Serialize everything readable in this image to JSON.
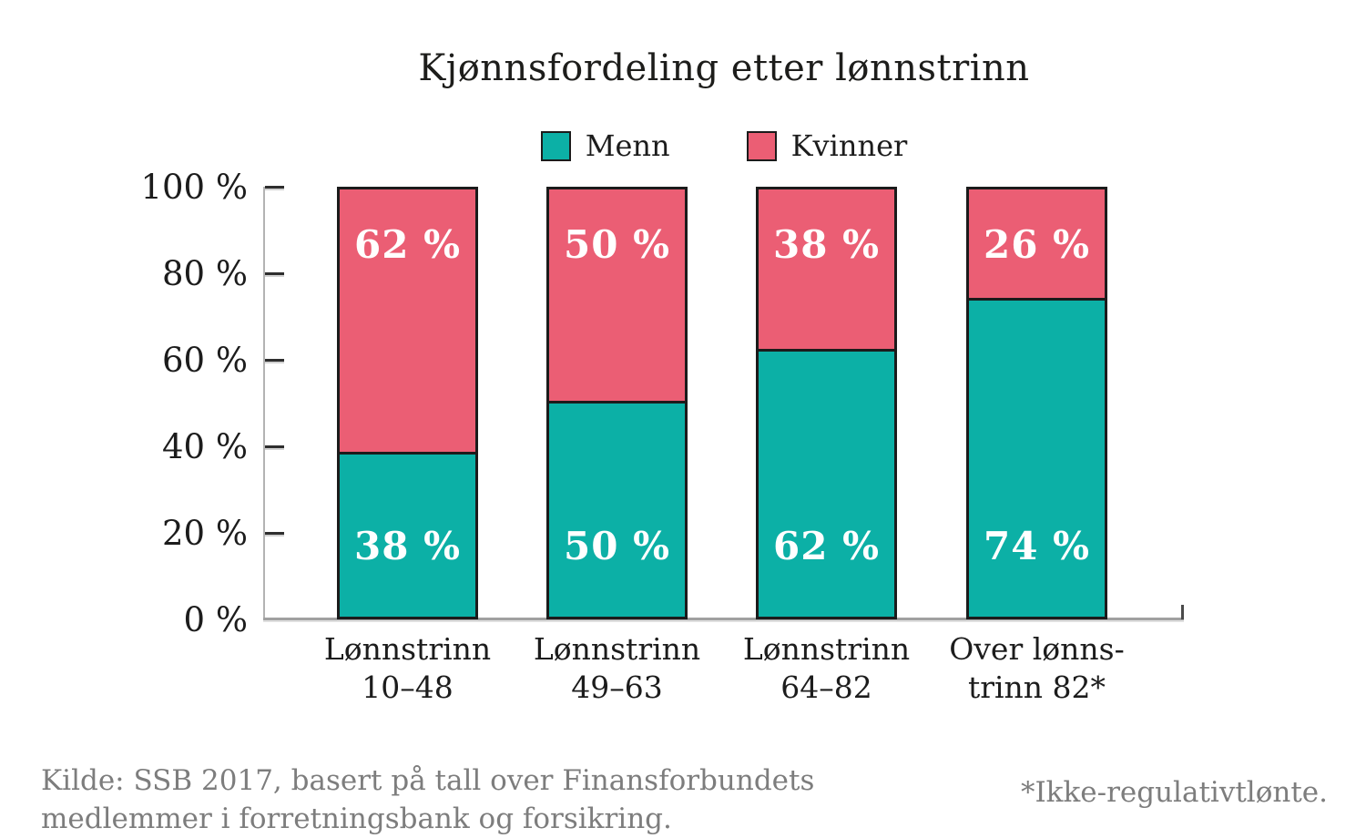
{
  "chart_data": {
    "type": "bar",
    "stacked": true,
    "title": "Kjønnsfordeling etter lønnstrinn",
    "categories": [
      [
        "Lønnstrinn",
        "10–48"
      ],
      [
        "Lønnstrinn",
        "49–63"
      ],
      [
        "Lønnstrinn",
        "64–82"
      ],
      [
        "Over lønns-",
        "trinn 82*"
      ]
    ],
    "series": [
      {
        "name": "Menn",
        "color": "#0CB0A6",
        "values": [
          38,
          50,
          62,
          74
        ],
        "labels": [
          "38 %",
          "50 %",
          "62 %",
          "74 %"
        ],
        "position": "bottom"
      },
      {
        "name": "Kvinner",
        "color": "#EB5E74",
        "values": [
          62,
          50,
          38,
          26
        ],
        "labels": [
          "62 %",
          "50 %",
          "38 %",
          "26 %"
        ],
        "position": "top"
      }
    ],
    "ylim": [
      0,
      100
    ],
    "yticks": [
      {
        "label": "0 %",
        "value": 0
      },
      {
        "label": "20 %",
        "value": 20
      },
      {
        "label": "40 %",
        "value": 40
      },
      {
        "label": "60 %",
        "value": 60
      },
      {
        "label": "80 %",
        "value": 80
      },
      {
        "label": "100 %",
        "value": 100
      }
    ],
    "grid": false,
    "legend_position": "top"
  },
  "legend": {
    "menn_label": "Menn",
    "kvinner_label": "Kvinner"
  },
  "footer": {
    "source_line1": "Kilde: SSB 2017, basert på tall over Finansforbundets",
    "source_line2": "medlemmer i forretningsbank og forsikring.",
    "footnote": "*Ikke-regulativtlønte."
  },
  "colors": {
    "menn_teal": "#0CB0A6",
    "kvinner_pink": "#EB5E74",
    "bar_border": "#1b1b1b",
    "axis_gray": "#b3b3b3",
    "text_dark": "#1c1c1c",
    "footer_gray": "#7d7d7d"
  }
}
